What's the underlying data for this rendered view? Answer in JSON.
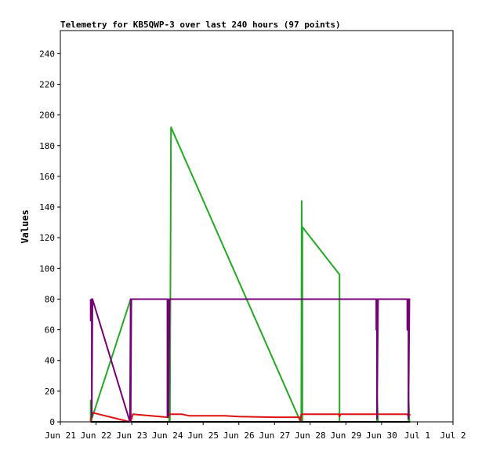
{
  "chart_data": {
    "type": "line",
    "title": "Telemetry for KB5QWP-3 over last 240 hours (97 points)",
    "ylabel": "Values",
    "xlabel": "",
    "ylim": [
      0,
      255
    ],
    "xlim": [
      0,
      11
    ],
    "x_tick_labels": [
      "Jun 21",
      "Jun 22",
      "Jun 23",
      "Jun 24",
      "Jun 25",
      "Jun 26",
      "Jun 27",
      "Jun 28",
      "Jun 29",
      "Jun 30",
      "Jul 1",
      "Jul 2"
    ],
    "y_ticks": [
      0,
      20,
      40,
      60,
      80,
      100,
      120,
      140,
      160,
      180,
      200,
      220,
      240
    ],
    "grid": false,
    "series": [
      {
        "color": "#22aa22",
        "points": [
          [
            0.85,
            0
          ],
          [
            0.85,
            14
          ],
          [
            0.87,
            0
          ],
          [
            0.88,
            2
          ],
          [
            1.97,
            80
          ],
          [
            1.97,
            0
          ],
          [
            2.02,
            0
          ],
          [
            3.05,
            0
          ],
          [
            3.05,
            40
          ],
          [
            3.07,
            0
          ],
          [
            3.1,
            192
          ],
          [
            6.73,
            0
          ],
          [
            6.75,
            0
          ],
          [
            6.76,
            144
          ],
          [
            6.78,
            0
          ],
          [
            6.78,
            127
          ],
          [
            7.82,
            96
          ],
          [
            7.82,
            0
          ],
          [
            7.85,
            0
          ],
          [
            8.87,
            0
          ],
          [
            8.87,
            20
          ],
          [
            8.9,
            0
          ],
          [
            9.75,
            0
          ],
          [
            9.75,
            20
          ],
          [
            9.78,
            0
          ]
        ]
      },
      {
        "color": "#dd1111",
        "points": [
          [
            0.85,
            0
          ],
          [
            0.85,
            1
          ],
          [
            0.9,
            6
          ],
          [
            1.95,
            0
          ],
          [
            1.95,
            3
          ],
          [
            1.97,
            0
          ],
          [
            2.03,
            5
          ],
          [
            3.0,
            3
          ],
          [
            3.03,
            3
          ],
          [
            3.05,
            5
          ],
          [
            3.4,
            5
          ],
          [
            3.6,
            4
          ],
          [
            4.6,
            4
          ],
          [
            5.0,
            3.5
          ],
          [
            6.0,
            3
          ],
          [
            6.7,
            3
          ],
          [
            6.72,
            0
          ],
          [
            6.75,
            5
          ],
          [
            7.8,
            5
          ],
          [
            7.82,
            3.5
          ],
          [
            7.85,
            5
          ],
          [
            8.85,
            5
          ],
          [
            9.0,
            5
          ],
          [
            9.72,
            5
          ],
          [
            9.75,
            3.5
          ],
          [
            9.8,
            5
          ]
        ]
      },
      {
        "color": "#000000",
        "points": [
          [
            0.85,
            0
          ],
          [
            9.8,
            0
          ]
        ]
      },
      {
        "color": "#770077",
        "points": [
          [
            0.85,
            80
          ],
          [
            0.85,
            66
          ],
          [
            0.88,
            80
          ],
          [
            0.88,
            3
          ],
          [
            0.9,
            80
          ],
          [
            1.95,
            0
          ],
          [
            1.97,
            80
          ],
          [
            1.97,
            3
          ],
          [
            1.99,
            80
          ],
          [
            3.0,
            80
          ],
          [
            3.0,
            3
          ],
          [
            3.03,
            80
          ],
          [
            3.03,
            4
          ],
          [
            3.06,
            80
          ],
          [
            3.08,
            80
          ],
          [
            8.85,
            80
          ],
          [
            8.85,
            60
          ],
          [
            8.87,
            80
          ],
          [
            8.87,
            2
          ],
          [
            8.9,
            80
          ],
          [
            9.72,
            80
          ],
          [
            9.72,
            60
          ],
          [
            9.75,
            80
          ],
          [
            9.75,
            2
          ],
          [
            9.78,
            80
          ],
          [
            9.8,
            80
          ]
        ]
      }
    ]
  }
}
